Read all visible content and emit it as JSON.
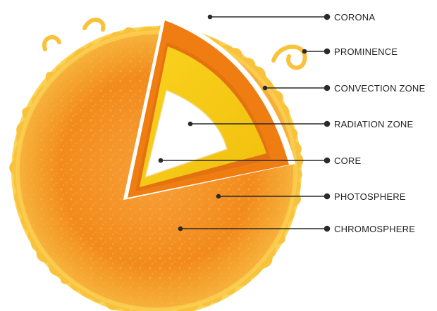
{
  "colors": {
    "background": "#ffffff",
    "corona_outer": "#f9c23c",
    "sun_body": "#f28c1b",
    "sun_highlight": "#f7a93a",
    "convection_zone": "#ef7d12",
    "radiation_zone": "#f8cc16",
    "core": "#ffffff",
    "label_line": "#2a2a2a"
  },
  "labels": {
    "corona": "CORONA",
    "prominence": "PROMINENCE",
    "convection_zone": "CONVECTION ZONE",
    "radiation_zone": "RADIATION ZONE",
    "core": "CORE",
    "photosphere": "PHOTOSPHERE",
    "chromosphere": "CHROMOSPHERE"
  }
}
